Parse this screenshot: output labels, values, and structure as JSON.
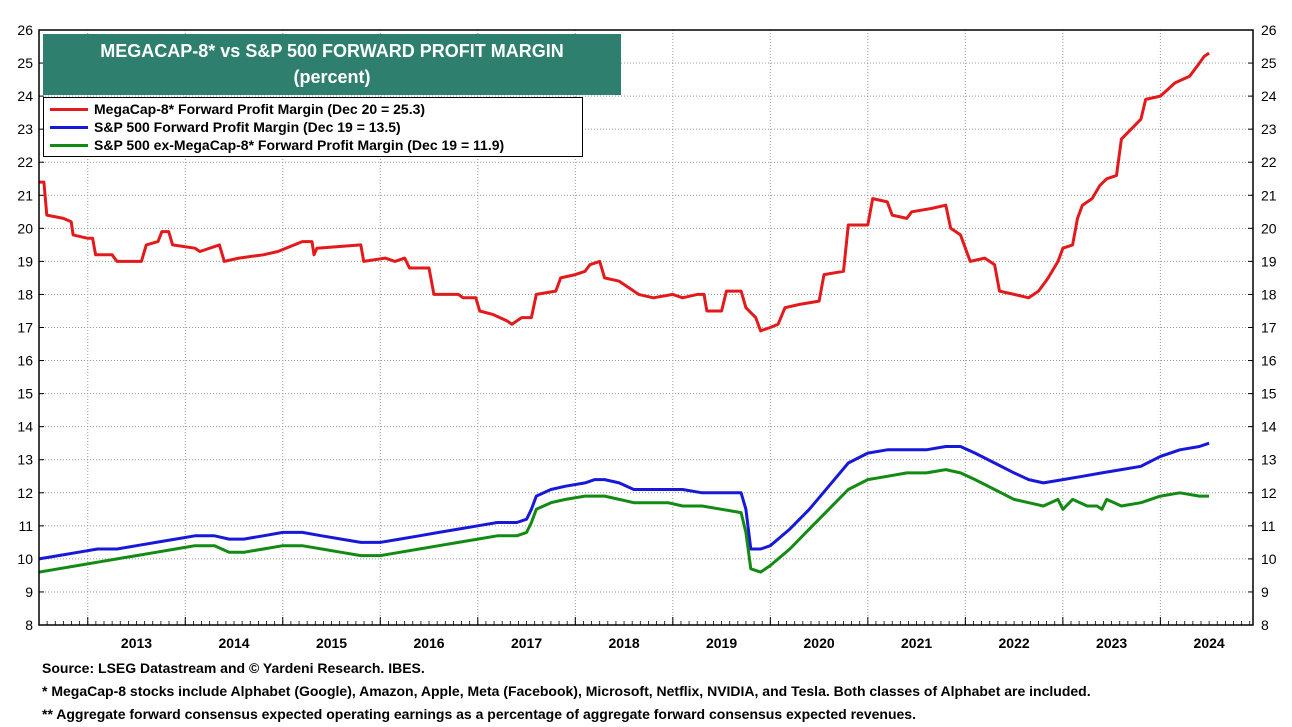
{
  "chart_data": {
    "type": "line",
    "title": "MEGACAP-8* vs S&P 500 FORWARD PROFIT MARGIN",
    "subtitle": "(percent)",
    "ylim": [
      8,
      26
    ],
    "y_ticks": [
      8,
      9,
      10,
      11,
      12,
      13,
      14,
      15,
      16,
      17,
      18,
      19,
      20,
      21,
      22,
      23,
      24,
      25,
      26
    ],
    "x_range": [
      2012.5,
      2024.95
    ],
    "x_year_labels": [
      "2013",
      "2014",
      "2015",
      "2016",
      "2017",
      "2018",
      "2019",
      "2020",
      "2021",
      "2022",
      "2023",
      "2024"
    ],
    "legend_position": "top-left",
    "grid": true,
    "series": [
      {
        "name": "MegaCap-8* Forward Profit Margin (Dec 20 = 25.3)",
        "color": "#e3191c",
        "points": [
          [
            2012.5,
            21.4
          ],
          [
            2012.55,
            21.4
          ],
          [
            2012.58,
            20.4
          ],
          [
            2012.75,
            20.3
          ],
          [
            2012.83,
            20.2
          ],
          [
            2012.85,
            19.8
          ],
          [
            2013.0,
            19.7
          ],
          [
            2013.05,
            19.7
          ],
          [
            2013.08,
            19.2
          ],
          [
            2013.25,
            19.2
          ],
          [
            2013.3,
            19.0
          ],
          [
            2013.55,
            19.0
          ],
          [
            2013.6,
            19.5
          ],
          [
            2013.72,
            19.6
          ],
          [
            2013.76,
            19.9
          ],
          [
            2013.83,
            19.9
          ],
          [
            2013.87,
            19.5
          ],
          [
            2014.1,
            19.4
          ],
          [
            2014.15,
            19.3
          ],
          [
            2014.35,
            19.5
          ],
          [
            2014.4,
            19.0
          ],
          [
            2014.55,
            19.1
          ],
          [
            2014.8,
            19.2
          ],
          [
            2014.95,
            19.3
          ],
          [
            2015.2,
            19.6
          ],
          [
            2015.3,
            19.6
          ],
          [
            2015.32,
            19.2
          ],
          [
            2015.35,
            19.4
          ],
          [
            2015.8,
            19.5
          ],
          [
            2015.83,
            19.0
          ],
          [
            2016.05,
            19.1
          ],
          [
            2016.15,
            19.0
          ],
          [
            2016.25,
            19.1
          ],
          [
            2016.3,
            18.8
          ],
          [
            2016.5,
            18.8
          ],
          [
            2016.55,
            18.0
          ],
          [
            2016.8,
            18.0
          ],
          [
            2016.85,
            17.9
          ],
          [
            2016.98,
            17.9
          ],
          [
            2017.02,
            17.5
          ],
          [
            2017.15,
            17.4
          ],
          [
            2017.3,
            17.2
          ],
          [
            2017.35,
            17.1
          ],
          [
            2017.45,
            17.3
          ],
          [
            2017.55,
            17.3
          ],
          [
            2017.6,
            18.0
          ],
          [
            2017.8,
            18.1
          ],
          [
            2017.85,
            18.5
          ],
          [
            2018.0,
            18.6
          ],
          [
            2018.1,
            18.7
          ],
          [
            2018.15,
            18.9
          ],
          [
            2018.25,
            19.0
          ],
          [
            2018.3,
            18.5
          ],
          [
            2018.45,
            18.4
          ],
          [
            2018.55,
            18.2
          ],
          [
            2018.65,
            18.0
          ],
          [
            2018.8,
            17.9
          ],
          [
            2019.0,
            18.0
          ],
          [
            2019.1,
            17.9
          ],
          [
            2019.25,
            18.0
          ],
          [
            2019.32,
            18.0
          ],
          [
            2019.35,
            17.5
          ],
          [
            2019.5,
            17.5
          ],
          [
            2019.55,
            18.1
          ],
          [
            2019.7,
            18.1
          ],
          [
            2019.75,
            17.6
          ],
          [
            2019.85,
            17.3
          ],
          [
            2019.9,
            16.9
          ],
          [
            2020.0,
            17.0
          ],
          [
            2020.08,
            17.1
          ],
          [
            2020.15,
            17.6
          ],
          [
            2020.3,
            17.7
          ],
          [
            2020.5,
            17.8
          ],
          [
            2020.55,
            18.6
          ],
          [
            2020.75,
            18.7
          ],
          [
            2020.8,
            20.1
          ],
          [
            2021.0,
            20.1
          ],
          [
            2021.05,
            20.9
          ],
          [
            2021.2,
            20.8
          ],
          [
            2021.25,
            20.4
          ],
          [
            2021.4,
            20.3
          ],
          [
            2021.45,
            20.5
          ],
          [
            2021.65,
            20.6
          ],
          [
            2021.8,
            20.7
          ],
          [
            2021.85,
            20.0
          ],
          [
            2021.95,
            19.8
          ],
          [
            2022.05,
            19.0
          ],
          [
            2022.2,
            19.1
          ],
          [
            2022.3,
            18.9
          ],
          [
            2022.35,
            18.1
          ],
          [
            2022.5,
            18.0
          ],
          [
            2022.65,
            17.9
          ],
          [
            2022.75,
            18.1
          ],
          [
            2022.8,
            18.3
          ],
          [
            2022.85,
            18.5
          ],
          [
            2022.95,
            19.0
          ],
          [
            2023.0,
            19.4
          ],
          [
            2023.1,
            19.5
          ],
          [
            2023.15,
            20.3
          ],
          [
            2023.2,
            20.7
          ],
          [
            2023.3,
            20.9
          ],
          [
            2023.38,
            21.3
          ],
          [
            2023.45,
            21.5
          ],
          [
            2023.55,
            21.6
          ],
          [
            2023.6,
            22.7
          ],
          [
            2023.7,
            23.0
          ],
          [
            2023.8,
            23.3
          ],
          [
            2023.85,
            23.9
          ],
          [
            2024.0,
            24.0
          ],
          [
            2024.15,
            24.4
          ],
          [
            2024.3,
            24.6
          ],
          [
            2024.4,
            25.0
          ],
          [
            2024.45,
            25.2
          ],
          [
            2024.5,
            25.3
          ]
        ]
      },
      {
        "name": "S&P 500 Forward Profit Margin (Dec 19 = 13.5)",
        "color": "#1818d8",
        "points": [
          [
            2012.5,
            10.0
          ],
          [
            2012.7,
            10.1
          ],
          [
            2012.9,
            10.2
          ],
          [
            2013.1,
            10.3
          ],
          [
            2013.3,
            10.3
          ],
          [
            2013.5,
            10.4
          ],
          [
            2013.7,
            10.5
          ],
          [
            2013.9,
            10.6
          ],
          [
            2014.1,
            10.7
          ],
          [
            2014.3,
            10.7
          ],
          [
            2014.45,
            10.6
          ],
          [
            2014.6,
            10.6
          ],
          [
            2014.8,
            10.7
          ],
          [
            2015.0,
            10.8
          ],
          [
            2015.2,
            10.8
          ],
          [
            2015.4,
            10.7
          ],
          [
            2015.6,
            10.6
          ],
          [
            2015.8,
            10.5
          ],
          [
            2016.0,
            10.5
          ],
          [
            2016.2,
            10.6
          ],
          [
            2016.4,
            10.7
          ],
          [
            2016.6,
            10.8
          ],
          [
            2016.8,
            10.9
          ],
          [
            2017.0,
            11.0
          ],
          [
            2017.2,
            11.1
          ],
          [
            2017.4,
            11.1
          ],
          [
            2017.5,
            11.2
          ],
          [
            2017.55,
            11.5
          ],
          [
            2017.6,
            11.9
          ],
          [
            2017.75,
            12.1
          ],
          [
            2017.9,
            12.2
          ],
          [
            2018.1,
            12.3
          ],
          [
            2018.2,
            12.4
          ],
          [
            2018.3,
            12.4
          ],
          [
            2018.45,
            12.3
          ],
          [
            2018.6,
            12.1
          ],
          [
            2018.8,
            12.1
          ],
          [
            2018.95,
            12.1
          ],
          [
            2019.1,
            12.1
          ],
          [
            2019.3,
            12.0
          ],
          [
            2019.5,
            12.0
          ],
          [
            2019.7,
            12.0
          ],
          [
            2019.75,
            11.5
          ],
          [
            2019.8,
            10.3
          ],
          [
            2019.9,
            10.3
          ],
          [
            2020.0,
            10.4
          ],
          [
            2020.2,
            10.9
          ],
          [
            2020.4,
            11.5
          ],
          [
            2020.6,
            12.2
          ],
          [
            2020.8,
            12.9
          ],
          [
            2021.0,
            13.2
          ],
          [
            2021.2,
            13.3
          ],
          [
            2021.4,
            13.3
          ],
          [
            2021.6,
            13.3
          ],
          [
            2021.8,
            13.4
          ],
          [
            2021.95,
            13.4
          ],
          [
            2022.1,
            13.2
          ],
          [
            2022.3,
            12.9
          ],
          [
            2022.5,
            12.6
          ],
          [
            2022.65,
            12.4
          ],
          [
            2022.8,
            12.3
          ],
          [
            2023.0,
            12.4
          ],
          [
            2023.2,
            12.5
          ],
          [
            2023.4,
            12.6
          ],
          [
            2023.6,
            12.7
          ],
          [
            2023.8,
            12.8
          ],
          [
            2024.0,
            13.1
          ],
          [
            2024.2,
            13.3
          ],
          [
            2024.4,
            13.4
          ],
          [
            2024.5,
            13.5
          ]
        ]
      },
      {
        "name": "S&P 500 ex-MegaCap-8* Forward Profit Margin (Dec 19 = 11.9)",
        "color": "#138a13",
        "points": [
          [
            2012.5,
            9.6
          ],
          [
            2012.7,
            9.7
          ],
          [
            2012.9,
            9.8
          ],
          [
            2013.1,
            9.9
          ],
          [
            2013.3,
            10.0
          ],
          [
            2013.5,
            10.1
          ],
          [
            2013.7,
            10.2
          ],
          [
            2013.9,
            10.3
          ],
          [
            2014.1,
            10.4
          ],
          [
            2014.3,
            10.4
          ],
          [
            2014.45,
            10.2
          ],
          [
            2014.6,
            10.2
          ],
          [
            2014.8,
            10.3
          ],
          [
            2015.0,
            10.4
          ],
          [
            2015.2,
            10.4
          ],
          [
            2015.4,
            10.3
          ],
          [
            2015.6,
            10.2
          ],
          [
            2015.8,
            10.1
          ],
          [
            2016.0,
            10.1
          ],
          [
            2016.2,
            10.2
          ],
          [
            2016.4,
            10.3
          ],
          [
            2016.6,
            10.4
          ],
          [
            2016.8,
            10.5
          ],
          [
            2017.0,
            10.6
          ],
          [
            2017.2,
            10.7
          ],
          [
            2017.4,
            10.7
          ],
          [
            2017.5,
            10.8
          ],
          [
            2017.55,
            11.1
          ],
          [
            2017.6,
            11.5
          ],
          [
            2017.75,
            11.7
          ],
          [
            2017.9,
            11.8
          ],
          [
            2018.1,
            11.9
          ],
          [
            2018.2,
            11.9
          ],
          [
            2018.3,
            11.9
          ],
          [
            2018.45,
            11.8
          ],
          [
            2018.6,
            11.7
          ],
          [
            2018.8,
            11.7
          ],
          [
            2018.95,
            11.7
          ],
          [
            2019.1,
            11.6
          ],
          [
            2019.3,
            11.6
          ],
          [
            2019.5,
            11.5
          ],
          [
            2019.7,
            11.4
          ],
          [
            2019.75,
            10.8
          ],
          [
            2019.8,
            9.7
          ],
          [
            2019.9,
            9.6
          ],
          [
            2020.0,
            9.8
          ],
          [
            2020.2,
            10.3
          ],
          [
            2020.4,
            10.9
          ],
          [
            2020.6,
            11.5
          ],
          [
            2020.8,
            12.1
          ],
          [
            2021.0,
            12.4
          ],
          [
            2021.2,
            12.5
          ],
          [
            2021.4,
            12.6
          ],
          [
            2021.6,
            12.6
          ],
          [
            2021.8,
            12.7
          ],
          [
            2021.95,
            12.6
          ],
          [
            2022.1,
            12.4
          ],
          [
            2022.3,
            12.1
          ],
          [
            2022.5,
            11.8
          ],
          [
            2022.65,
            11.7
          ],
          [
            2022.8,
            11.6
          ],
          [
            2022.95,
            11.8
          ],
          [
            2023.0,
            11.5
          ],
          [
            2023.1,
            11.8
          ],
          [
            2023.25,
            11.6
          ],
          [
            2023.35,
            11.6
          ],
          [
            2023.4,
            11.5
          ],
          [
            2023.45,
            11.8
          ],
          [
            2023.6,
            11.6
          ],
          [
            2023.8,
            11.7
          ],
          [
            2024.0,
            11.9
          ],
          [
            2024.2,
            12.0
          ],
          [
            2024.4,
            11.9
          ],
          [
            2024.5,
            11.9
          ]
        ]
      }
    ]
  },
  "footer": {
    "source": "Source: LSEG Datastream and © Yardeni Research. IBES.",
    "note1": "* MegaCap-8 stocks include Alphabet (Google), Amazon, Apple, Meta (Facebook), Microsoft, Netflix, NVIDIA, and Tesla. Both classes of Alphabet are included.",
    "note2": "** Aggregate forward consensus expected operating earnings as a percentage of aggregate forward consensus expected revenues."
  }
}
